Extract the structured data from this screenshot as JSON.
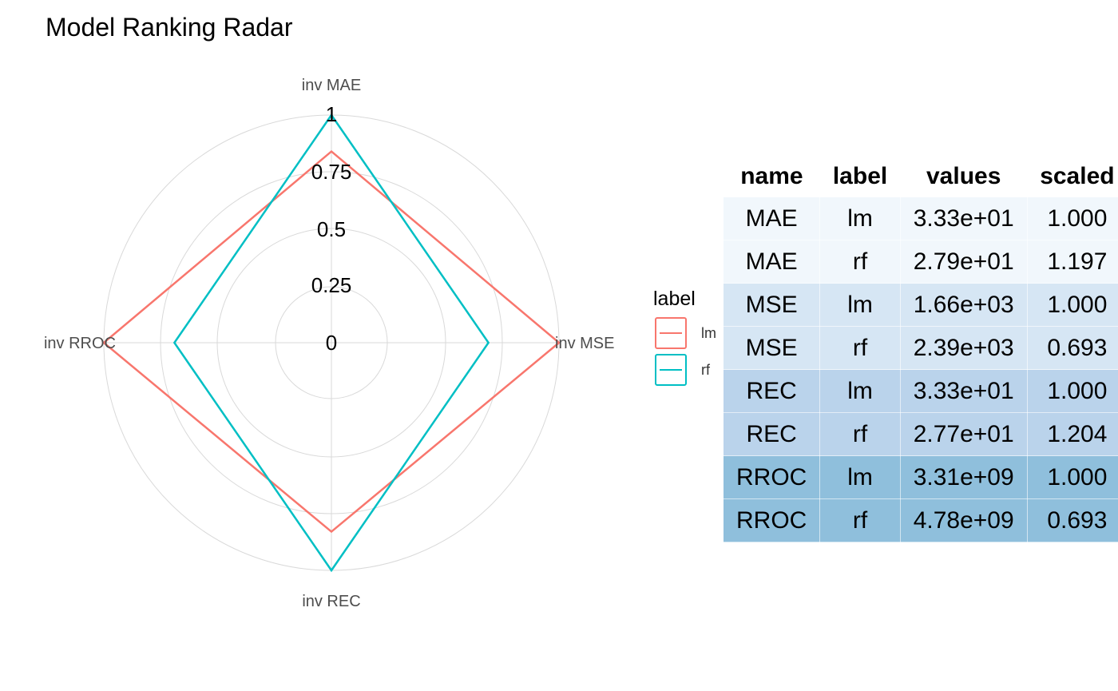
{
  "chart_data": [
    {
      "type": "radar",
      "title": "Model Ranking Radar",
      "axes": [
        "inv MAE",
        "inv MSE",
        "inv REC",
        "inv RROC"
      ],
      "radial_ticks": [
        "0",
        "0.25",
        "0.5",
        "0.75",
        "1"
      ],
      "radial_range": [
        0,
        1
      ],
      "grid": true,
      "legend": {
        "title": "label",
        "position": "right"
      },
      "series": [
        {
          "name": "lm",
          "color": "#F8766D",
          "values": [
            0.84,
            1.0,
            0.83,
            1.0
          ]
        },
        {
          "name": "rf",
          "color": "#00BFC4",
          "values": [
            1.0,
            0.69,
            1.0,
            0.69
          ]
        }
      ]
    },
    {
      "type": "table",
      "columns": [
        "name",
        "label",
        "values",
        "scaled"
      ],
      "column_display": [
        "name",
        "label",
        "values",
        "scaled"
      ],
      "rows": [
        {
          "cells": [
            "MAE",
            "lm",
            "3.33e+01",
            "1.000"
          ],
          "bg": "#F1F7FC"
        },
        {
          "cells": [
            "MAE",
            "rf",
            "2.79e+01",
            "1.197"
          ],
          "bg": "#F1F7FC"
        },
        {
          "cells": [
            "MSE",
            "lm",
            "1.66e+03",
            "1.000"
          ],
          "bg": "#D6E6F4"
        },
        {
          "cells": [
            "MSE",
            "rf",
            "2.39e+03",
            "0.693"
          ],
          "bg": "#D6E6F4"
        },
        {
          "cells": [
            "REC",
            "lm",
            "3.33e+01",
            "1.000"
          ],
          "bg": "#BAD3EB"
        },
        {
          "cells": [
            "REC",
            "rf",
            "2.77e+01",
            "1.204"
          ],
          "bg": "#BAD3EB"
        },
        {
          "cells": [
            "RROC",
            "lm",
            "3.31e+09",
            "1.000"
          ],
          "bg": "#8FBFDC"
        },
        {
          "cells": [
            "RROC",
            "rf",
            "4.78e+09",
            "0.693"
          ],
          "bg": "#8FBFDC"
        }
      ]
    }
  ]
}
